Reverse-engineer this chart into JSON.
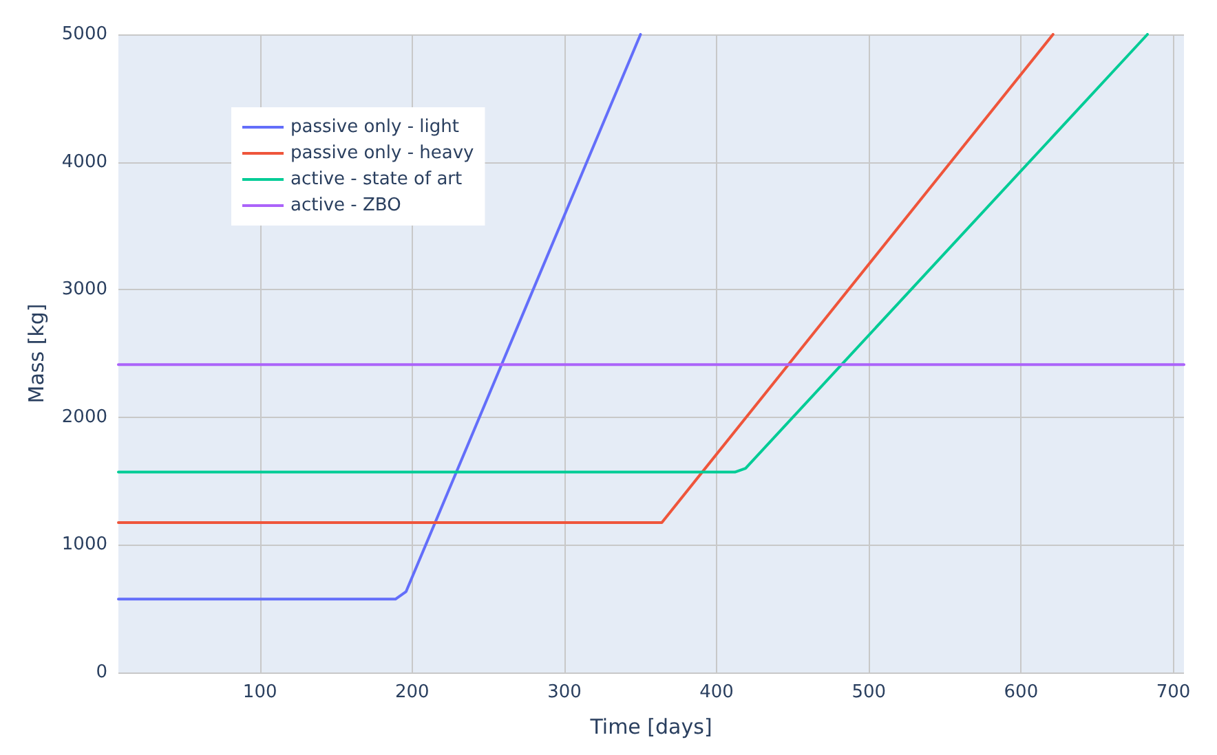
{
  "chart_data": {
    "type": "line",
    "xlabel": "Time [days]",
    "ylabel": "Mass [kg]",
    "xlim": [
      7,
      707
    ],
    "xticks": [
      100,
      200,
      300,
      400,
      500,
      600,
      700
    ],
    "ylim": [
      0,
      5000
    ],
    "yticks": [
      0,
      1000,
      2000,
      3000,
      4000,
      5000
    ],
    "grid": true,
    "legend": "top left",
    "marker": "none",
    "line_style": "solid",
    "series": [
      {
        "name": "passive only - light",
        "color": "#636efa",
        "x": [
          7,
          189,
          196,
          350
        ],
        "values": [
          575,
          575,
          634,
          5000
        ]
      },
      {
        "name": "passive only - heavy",
        "color": "#ef553b",
        "x": [
          7,
          364,
          621
        ],
        "values": [
          1175,
          1175,
          5000
        ]
      },
      {
        "name": "active - state of art",
        "color": "#00cc96",
        "x": [
          7,
          412,
          419,
          683
        ],
        "values": [
          1570,
          1570,
          1600,
          5000
        ]
      },
      {
        "name": "active - ZBO",
        "color": "#ab63fa",
        "x": [
          7,
          707
        ],
        "values": [
          2412,
          2412
        ]
      }
    ]
  }
}
